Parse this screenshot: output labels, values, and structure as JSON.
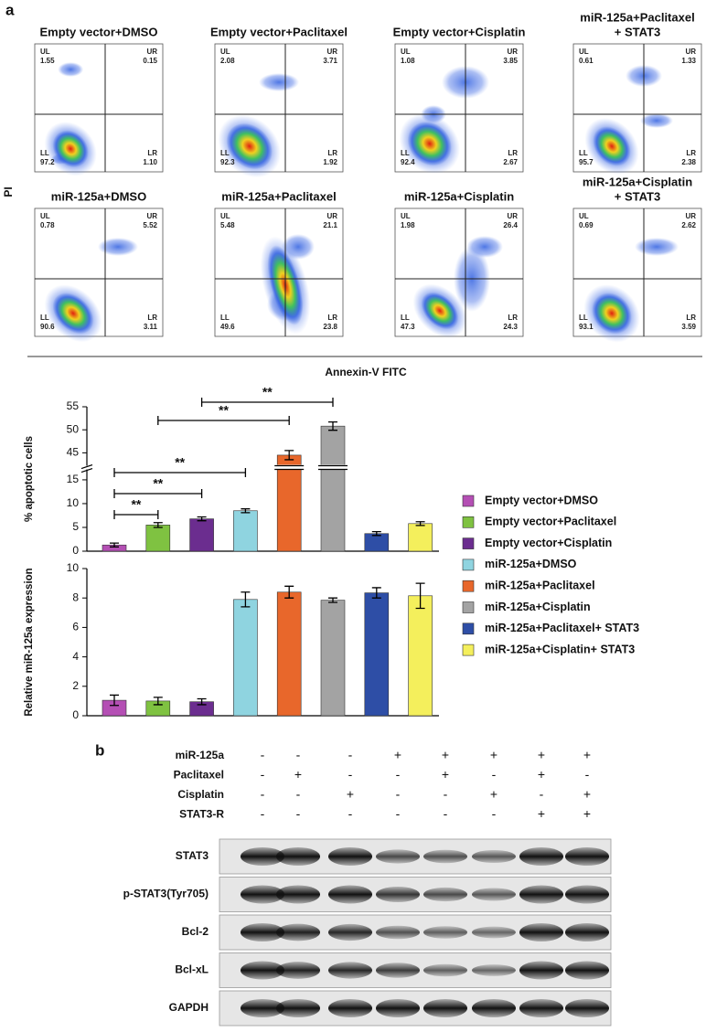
{
  "panel_labels": [
    "a",
    "b"
  ],
  "flow_cytometry": {
    "y_label": "PI",
    "x_label": "Annexin-V FITC",
    "quadrant_labels": [
      "UL",
      "UR",
      "LL",
      "LR"
    ],
    "plots": [
      {
        "title": [
          "Empty vector+DMSO"
        ],
        "quadrants": [
          "1.55",
          "0.15",
          "97.2",
          "1.10"
        ]
      },
      {
        "title": [
          "Empty vector+Paclitaxel"
        ],
        "quadrants": [
          "2.08",
          "3.71",
          "92.3",
          "1.92"
        ]
      },
      {
        "title": [
          "Empty vector+Cisplatin"
        ],
        "quadrants": [
          "1.08",
          "3.85",
          "92.4",
          "2.67"
        ]
      },
      {
        "title": [
          "miR-125a+Paclitaxel",
          "+ STAT3"
        ],
        "quadrants": [
          "0.61",
          "1.33",
          "95.7",
          "2.38"
        ]
      },
      {
        "title": [
          "miR-125a+DMSO"
        ],
        "quadrants": [
          "0.78",
          "5.52",
          "90.6",
          "3.11"
        ]
      },
      {
        "title": [
          "miR-125a+Paclitaxel"
        ],
        "quadrants": [
          "5.48",
          "21.1",
          "49.6",
          "23.8"
        ]
      },
      {
        "title": [
          "miR-125a+Cisplatin"
        ],
        "quadrants": [
          "1.98",
          "26.4",
          "47.3",
          "24.3"
        ]
      },
      {
        "title": [
          "miR-125a+Cisplatin",
          "+ STAT3"
        ],
        "quadrants": [
          "0.69",
          "2.62",
          "93.1",
          "3.59"
        ]
      }
    ]
  },
  "chart_data": [
    {
      "type": "bar",
      "ylabel": "% apoptotic cells",
      "categories": [
        "Empty vector+DMSO",
        "Empty vector+Paclitaxel",
        "Empty vector+Cisplatin",
        "miR-125a+DMSO",
        "miR-125a+Paclitaxel",
        "miR-125a+Cisplatin",
        "miR-125a+Paclitaxel+ STAT3",
        "miR-125a+Cisplatin+ STAT3"
      ],
      "colors": [
        "#b44fb4",
        "#7fc241",
        "#6b2d8f",
        "#8fd4e0",
        "#e8672b",
        "#a3a3a3",
        "#2e4ea6",
        "#f4ef5c"
      ],
      "values": [
        1.3,
        5.5,
        6.8,
        8.5,
        44.5,
        50.8,
        3.7,
        5.8
      ],
      "errors": [
        0.4,
        0.5,
        0.4,
        0.4,
        1.0,
        0.9,
        0.4,
        0.4
      ],
      "ylim": [
        0,
        55
      ],
      "axis_break": [
        17,
        42
      ],
      "yticks": [
        0,
        5,
        10,
        15,
        45,
        50,
        55
      ],
      "annotations": [
        {
          "label": "**",
          "from": 0,
          "to": 1
        },
        {
          "label": "**",
          "from": 0,
          "to": 2
        },
        {
          "label": "**",
          "from": 0,
          "to": 3
        },
        {
          "label": "**",
          "from": 1,
          "to": 4
        },
        {
          "label": "**",
          "from": 2,
          "to": 5
        }
      ]
    },
    {
      "type": "bar",
      "ylabel": "Relative miR-125a expression",
      "colors": [
        "#b44fb4",
        "#7fc241",
        "#6b2d8f",
        "#8fd4e0",
        "#e8672b",
        "#a3a3a3",
        "#2e4ea6",
        "#f4ef5c"
      ],
      "values": [
        1.05,
        1.0,
        0.95,
        7.9,
        8.4,
        7.85,
        8.35,
        8.15
      ],
      "errors": [
        0.35,
        0.25,
        0.2,
        0.5,
        0.4,
        0.15,
        0.35,
        0.85
      ],
      "ylim": [
        0,
        10
      ],
      "yticks": [
        0,
        2,
        4,
        6,
        8,
        10
      ]
    }
  ],
  "western_blot": {
    "treatments": [
      {
        "name": "miR-125a",
        "signs": [
          "-",
          "-",
          "-",
          "+",
          "+",
          "+",
          "+",
          "+"
        ]
      },
      {
        "name": "Paclitaxel",
        "signs": [
          "-",
          "+",
          "-",
          "-",
          "+",
          "-",
          "+",
          "-"
        ]
      },
      {
        "name": "Cisplatin",
        "signs": [
          "-",
          "-",
          "+",
          "-",
          "-",
          "+",
          "-",
          "+"
        ]
      },
      {
        "name": "STAT3-R",
        "signs": [
          "-",
          "-",
          "-",
          "-",
          "-",
          "-",
          "+",
          "+"
        ]
      }
    ],
    "proteins": [
      "STAT3",
      "p-STAT3(Tyr705)",
      "Bcl-2",
      "Bcl-xL",
      "GAPDH"
    ]
  }
}
